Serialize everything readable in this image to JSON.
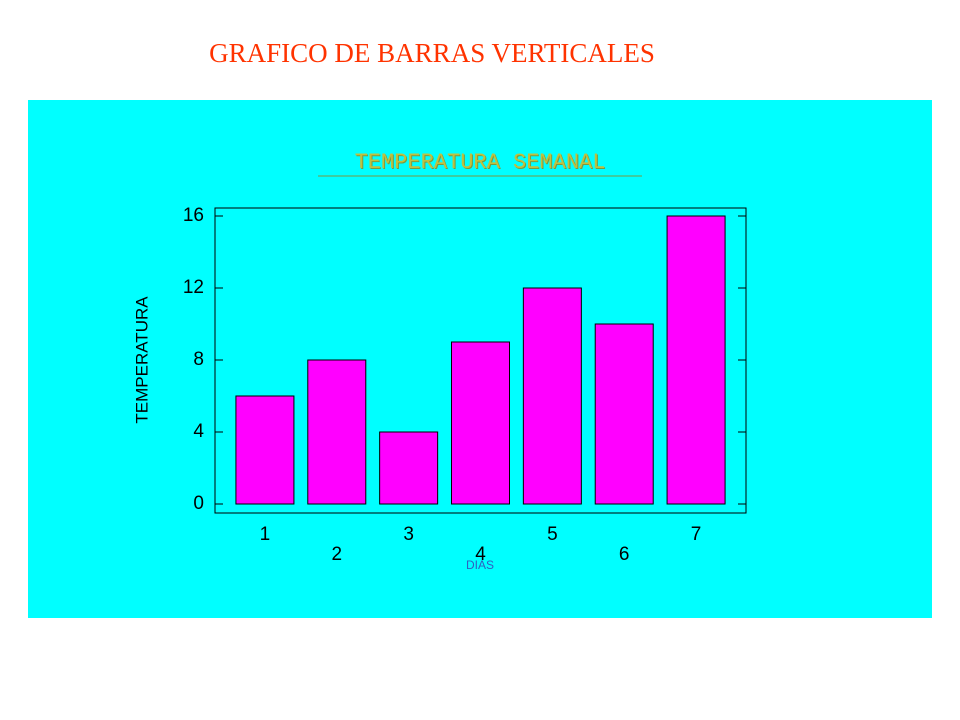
{
  "header": {
    "title": "GRAFICO DE BARRAS VERTICALES"
  },
  "chart_data": {
    "type": "bar",
    "title": "TEMPERATURA SEMANAL",
    "x_label": "DIAS",
    "y_label": "TEMPERATURA",
    "categories": [
      "1",
      "2",
      "3",
      "4",
      "5",
      "6",
      "7"
    ],
    "values": [
      6,
      8,
      4,
      9,
      12,
      10,
      16
    ],
    "color": "#ff00ff",
    "ylim": [
      0,
      16
    ],
    "yticks": [
      0,
      4,
      8,
      12,
      16
    ]
  }
}
